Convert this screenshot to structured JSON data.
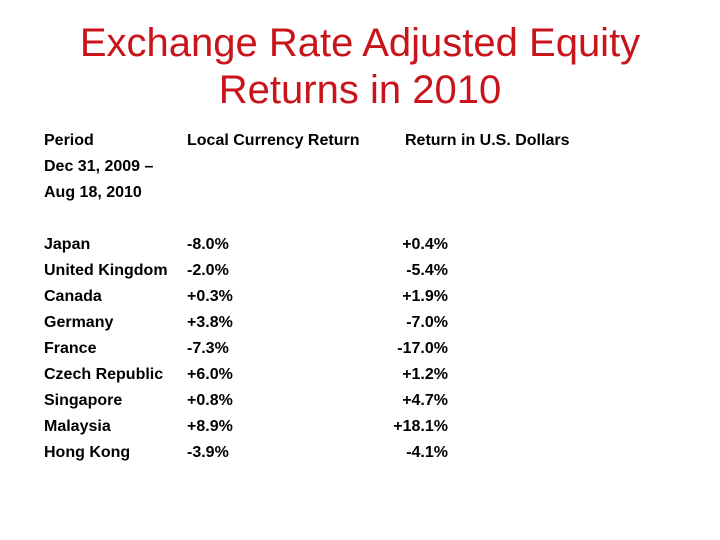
{
  "slide": {
    "title_line1": "Exchange Rate Adjusted Equity",
    "title_line2": "Returns in 2010",
    "title_color": "#c8141a",
    "body_text_color": "#000000",
    "background_color": "#ffffff"
  },
  "table": {
    "period_label": "Period",
    "period_start": "Dec 31, 2009 –",
    "period_end": "Aug 18, 2010",
    "col_local_currency": "Local Currency Return",
    "col_usd": "Return in U.S. Dollars",
    "rows": [
      {
        "country": "Japan",
        "local": "-8.0%",
        "usd": "+0.4%"
      },
      {
        "country": "United Kingdom",
        "local": "-2.0%",
        "usd": "-5.4%"
      },
      {
        "country": "Canada",
        "local": "+0.3%",
        "usd": "+1.9%"
      },
      {
        "country": "Germany",
        "local": "+3.8%",
        "usd": "-7.0%"
      },
      {
        "country": "France",
        "local": "-7.3%",
        "usd": "-17.0%"
      },
      {
        "country": "Czech Republic",
        "local": "+6.0%",
        "usd": "+1.2%"
      },
      {
        "country": "Singapore",
        "local": "+0.8%",
        "usd": "+4.7%"
      },
      {
        "country": "Malaysia",
        "local": "+8.9%",
        "usd": "+18.1%"
      },
      {
        "country": "Hong Kong",
        "local": "-3.9%",
        "usd": "-4.1%"
      }
    ]
  }
}
